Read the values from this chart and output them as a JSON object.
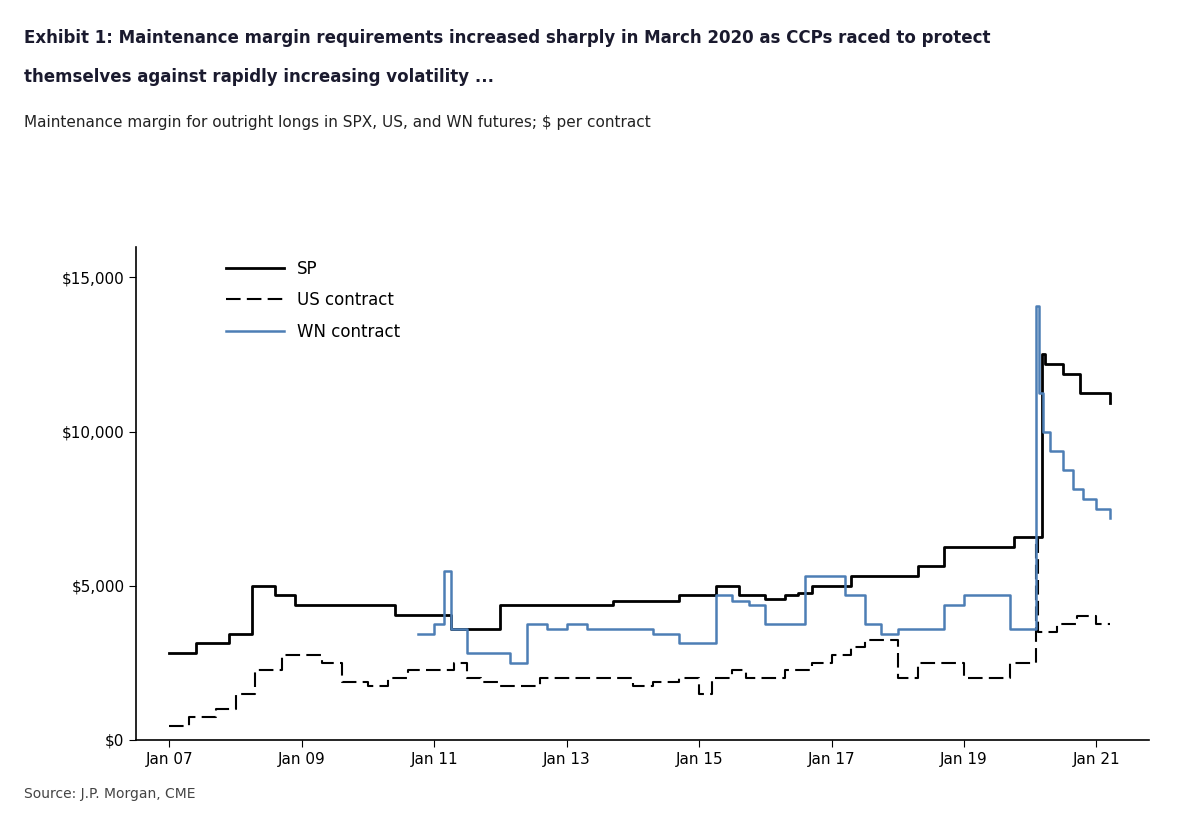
{
  "title_line1": "Exhibit 1: Maintenance margin requirements increased sharply in March 2020 as CCPs raced to protect",
  "title_line2": "themselves against rapidly increasing volatility ...",
  "subtitle": "Maintenance margin for outright longs in SPX, US, and WN futures; $ per contract",
  "source": "Source: J.P. Morgan, CME",
  "background_color": "#ffffff",
  "legend_labels": [
    "SP",
    "US contract",
    "WN contract"
  ],
  "sp_color": "#000000",
  "us_color": "#000000",
  "wn_color": "#4d7eb5",
  "ylim": [
    0,
    16000
  ],
  "yticks": [
    0,
    5000,
    10000,
    15000
  ],
  "xtick_positions": [
    2007,
    2009,
    2011,
    2013,
    2015,
    2017,
    2019,
    2021
  ],
  "xtick_labels": [
    "Jan 07",
    "Jan 09",
    "Jan 11",
    "Jan 13",
    "Jan 15",
    "Jan 17",
    "Jan 19",
    "Jan 21"
  ],
  "xlim": [
    2006.5,
    2021.8
  ],
  "sp_data": [
    [
      2007.0,
      2813
    ],
    [
      2007.4,
      3125
    ],
    [
      2007.9,
      3438
    ],
    [
      2008.25,
      5000
    ],
    [
      2008.6,
      4688
    ],
    [
      2008.9,
      4375
    ],
    [
      2009.5,
      4375
    ],
    [
      2010.0,
      4375
    ],
    [
      2010.4,
      4063
    ],
    [
      2011.0,
      4063
    ],
    [
      2011.25,
      3594
    ],
    [
      2011.6,
      3594
    ],
    [
      2012.0,
      4375
    ],
    [
      2012.3,
      4375
    ],
    [
      2012.9,
      4375
    ],
    [
      2013.3,
      4375
    ],
    [
      2013.7,
      4500
    ],
    [
      2014.2,
      4500
    ],
    [
      2014.7,
      4688
    ],
    [
      2015.0,
      4688
    ],
    [
      2015.25,
      5000
    ],
    [
      2015.6,
      4688
    ],
    [
      2016.0,
      4563
    ],
    [
      2016.3,
      4688
    ],
    [
      2016.5,
      4750
    ],
    [
      2016.7,
      5000
    ],
    [
      2017.0,
      5000
    ],
    [
      2017.3,
      5313
    ],
    [
      2017.7,
      5313
    ],
    [
      2018.0,
      5313
    ],
    [
      2018.3,
      5625
    ],
    [
      2018.7,
      6250
    ],
    [
      2019.0,
      6250
    ],
    [
      2019.4,
      6250
    ],
    [
      2019.75,
      6563
    ],
    [
      2020.0,
      6563
    ],
    [
      2020.17,
      12500
    ],
    [
      2020.22,
      12188
    ],
    [
      2020.5,
      11875
    ],
    [
      2020.75,
      11250
    ],
    [
      2021.0,
      11250
    ],
    [
      2021.2,
      10938
    ]
  ],
  "us_data": [
    [
      2007.0,
      450
    ],
    [
      2007.3,
      750
    ],
    [
      2007.7,
      1000
    ],
    [
      2008.0,
      1500
    ],
    [
      2008.3,
      2250
    ],
    [
      2008.7,
      2750
    ],
    [
      2009.0,
      2750
    ],
    [
      2009.3,
      2500
    ],
    [
      2009.6,
      1875
    ],
    [
      2010.0,
      1750
    ],
    [
      2010.3,
      2000
    ],
    [
      2010.6,
      2250
    ],
    [
      2011.0,
      2250
    ],
    [
      2011.3,
      2500
    ],
    [
      2011.5,
      2000
    ],
    [
      2011.7,
      1875
    ],
    [
      2012.0,
      1750
    ],
    [
      2012.3,
      1750
    ],
    [
      2012.6,
      2000
    ],
    [
      2013.0,
      2000
    ],
    [
      2013.3,
      2000
    ],
    [
      2013.6,
      2000
    ],
    [
      2014.0,
      1750
    ],
    [
      2014.3,
      1875
    ],
    [
      2014.7,
      2000
    ],
    [
      2015.0,
      1500
    ],
    [
      2015.2,
      2000
    ],
    [
      2015.5,
      2250
    ],
    [
      2015.7,
      2000
    ],
    [
      2016.0,
      2000
    ],
    [
      2016.3,
      2250
    ],
    [
      2016.7,
      2500
    ],
    [
      2017.0,
      2750
    ],
    [
      2017.3,
      3000
    ],
    [
      2017.5,
      3250
    ],
    [
      2017.8,
      3250
    ],
    [
      2018.0,
      2000
    ],
    [
      2018.3,
      2500
    ],
    [
      2018.7,
      2500
    ],
    [
      2019.0,
      2000
    ],
    [
      2019.3,
      2000
    ],
    [
      2019.7,
      2500
    ],
    [
      2020.0,
      2500
    ],
    [
      2020.08,
      6500
    ],
    [
      2020.12,
      3500
    ],
    [
      2020.2,
      3500
    ],
    [
      2020.4,
      3750
    ],
    [
      2020.7,
      4000
    ],
    [
      2020.9,
      4000
    ],
    [
      2021.0,
      3750
    ],
    [
      2021.2,
      3750
    ]
  ],
  "wn_data": [
    [
      2010.75,
      3438
    ],
    [
      2011.0,
      3750
    ],
    [
      2011.15,
      5469
    ],
    [
      2011.25,
      3594
    ],
    [
      2011.5,
      2813
    ],
    [
      2011.7,
      2813
    ],
    [
      2012.0,
      2813
    ],
    [
      2012.15,
      2500
    ],
    [
      2012.4,
      3750
    ],
    [
      2012.7,
      3594
    ],
    [
      2013.0,
      3750
    ],
    [
      2013.3,
      3594
    ],
    [
      2013.6,
      3594
    ],
    [
      2014.0,
      3594
    ],
    [
      2014.3,
      3438
    ],
    [
      2014.7,
      3125
    ],
    [
      2015.0,
      3125
    ],
    [
      2015.25,
      4688
    ],
    [
      2015.5,
      4500
    ],
    [
      2015.75,
      4375
    ],
    [
      2016.0,
      3750
    ],
    [
      2016.3,
      3750
    ],
    [
      2016.6,
      5313
    ],
    [
      2017.0,
      5313
    ],
    [
      2017.2,
      4688
    ],
    [
      2017.5,
      3750
    ],
    [
      2017.75,
      3438
    ],
    [
      2018.0,
      3594
    ],
    [
      2018.3,
      3594
    ],
    [
      2018.7,
      4375
    ],
    [
      2019.0,
      4688
    ],
    [
      2019.3,
      4688
    ],
    [
      2019.5,
      4688
    ],
    [
      2019.7,
      3594
    ],
    [
      2020.0,
      3594
    ],
    [
      2020.08,
      14063
    ],
    [
      2020.13,
      11250
    ],
    [
      2020.2,
      10000
    ],
    [
      2020.3,
      9375
    ],
    [
      2020.5,
      8750
    ],
    [
      2020.65,
      8125
    ],
    [
      2020.8,
      7813
    ],
    [
      2021.0,
      7500
    ],
    [
      2021.2,
      7188
    ]
  ]
}
